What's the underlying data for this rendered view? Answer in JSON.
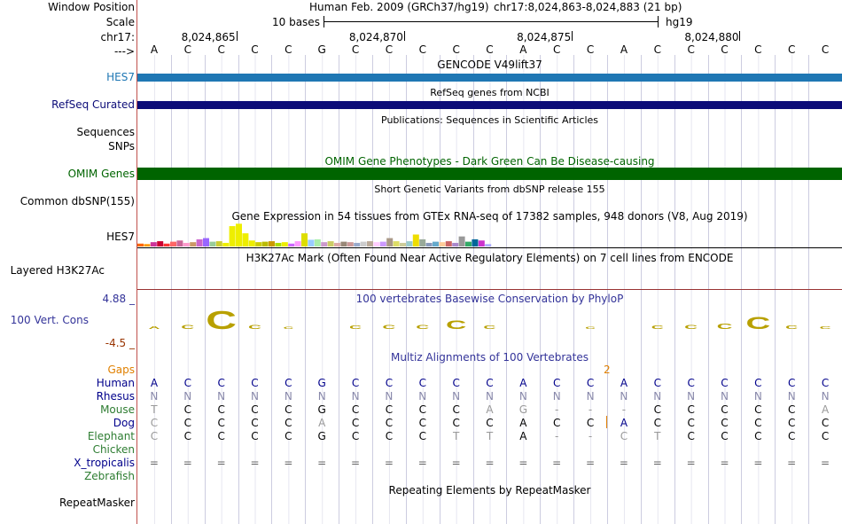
{
  "side_labels": {
    "window_position": "Window Position",
    "scale": "Scale",
    "chrom": "chr17:",
    "strand": "--->",
    "hes7": "HES7",
    "refseq": "RefSeq Curated",
    "sequences": "Sequences",
    "snps": "SNPs",
    "omim": "OMIM Genes",
    "common_dbsnp": "Common dbSNP(155)",
    "gtex_hes7": "HES7",
    "layered": "Layered H3K27Ac",
    "cons_max": "4.88 _",
    "cons": "100 Vert. Cons",
    "cons_min": "-4.5 _",
    "gaps": "Gaps",
    "human": "Human",
    "rhesus": "Rhesus",
    "mouse": "Mouse",
    "dog": "Dog",
    "elephant": "Elephant",
    "chicken": "Chicken",
    "xtrop": "X_tropicalis",
    "zebrafish": "Zebrafish",
    "repeatmasker": "RepeatMasker"
  },
  "header": {
    "assembly_title": "Human Feb. 2009 (GRCh37/hg19)",
    "position": "chr17:8,024,863-8,024,883 (21 bp)",
    "scale_label": "10 bases",
    "db": "hg19",
    "ruler_ticks": [
      "8,024,865",
      "8,024,870",
      "8,024,875",
      "8,024,880"
    ]
  },
  "sequence": [
    "A",
    "C",
    "C",
    "C",
    "C",
    "G",
    "C",
    "C",
    "C",
    "C",
    "C",
    "A",
    "C",
    "C",
    "A",
    "C",
    "C",
    "C",
    "C",
    "C",
    "C"
  ],
  "track_titles": {
    "gencode": "GENCODE V49lift37",
    "refseq": "RefSeq genes from NCBI",
    "publications": "Publications: Sequences in Scientific Articles",
    "omim": "OMIM Gene Phenotypes - Dark Green Can Be Disease-causing",
    "dbsnp": "Short Genetic Variants from dbSNP release 155",
    "gtex": "Gene Expression in 54 tissues from GTEx RNA-seq of 17382 samples, 948 donors (V8, Aug 2019)",
    "h3k27ac": "H3K27Ac Mark (Often Found Near Active Regulatory Elements) on 7 cell lines from ENCODE",
    "phylop": "100 vertebrates Basewise Conservation by PhyloP",
    "multiz": "Multiz Alignments of 100 Vertebrates",
    "repeatmasker": "Repeating Elements by RepeatMasker"
  },
  "gaps_marker": "2",
  "alignments": {
    "human": [
      "A",
      "C",
      "C",
      "C",
      "C",
      "G",
      "C",
      "C",
      "C",
      "C",
      "C",
      "A",
      "C",
      "C",
      "A",
      "C",
      "C",
      "C",
      "C",
      "C",
      "C"
    ],
    "rhesus": [
      "N",
      "N",
      "N",
      "N",
      "N",
      "N",
      "N",
      "N",
      "N",
      "N",
      "N",
      "N",
      "N",
      "N",
      "N",
      "N",
      "N",
      "N",
      "N",
      "N",
      "N"
    ],
    "mouse": [
      "T",
      "C",
      "C",
      "C",
      "C",
      "G",
      "C",
      "C",
      "C",
      "C",
      "A",
      "G",
      "-",
      "-",
      "-",
      "C",
      "C",
      "C",
      "C",
      "C",
      "A"
    ],
    "dog": [
      "C",
      "C",
      "C",
      "C",
      "C",
      "A",
      "C",
      "C",
      "C",
      "C",
      "C",
      "A",
      "C",
      "C",
      "A",
      "C",
      "C",
      "C",
      "C",
      "C",
      "C"
    ],
    "elephant": [
      "C",
      "C",
      "C",
      "C",
      "C",
      "G",
      "C",
      "C",
      "C",
      "T",
      "T",
      "A",
      "-",
      "-",
      "C",
      "T",
      "C",
      "C",
      "C",
      "C",
      "C"
    ],
    "xtrop": [
      "=",
      "=",
      "=",
      "=",
      "=",
      "=",
      "=",
      "=",
      "=",
      "=",
      "=",
      "=",
      "=",
      "=",
      "=",
      "=",
      "=",
      "=",
      "=",
      "=",
      "="
    ]
  },
  "gtex_values": [
    0.12,
    0.1,
    0.18,
    0.22,
    0.12,
    0.2,
    0.25,
    0.15,
    0.18,
    0.3,
    0.35,
    0.2,
    0.22,
    0.15,
    0.85,
    0.95,
    0.55,
    0.25,
    0.18,
    0.2,
    0.22,
    0.15,
    0.18,
    0.12,
    0.22,
    0.55,
    0.28,
    0.3,
    0.18,
    0.22,
    0.15,
    0.2,
    0.18,
    0.15,
    0.2,
    0.22,
    0.18,
    0.2,
    0.35,
    0.22,
    0.15,
    0.22,
    0.5,
    0.3,
    0.15,
    0.2,
    0.18,
    0.22,
    0.15,
    0.42,
    0.2,
    0.3,
    0.25,
    0.1
  ],
  "gtex_colors": [
    "#FF6600",
    "#FF9900",
    "#CC3399",
    "#CC0033",
    "#FF3333",
    "#FF6666",
    "#CC6699",
    "#FF99CC",
    "#CC9966",
    "#CC66CC",
    "#9966FF",
    "#99CC99",
    "#CCCC33",
    "#EEEE00",
    "#EEEE00",
    "#EEEE00",
    "#EEEE00",
    "#EEEE00",
    "#CCCC00",
    "#BBBB00",
    "#CC9900",
    "#AADD00",
    "#EEEE00",
    "#CC66FF",
    "#FF99FF",
    "#DDDD00",
    "#99CCFF",
    "#AAEEAA",
    "#CC99CC",
    "#CCCC66",
    "#DDAAAA",
    "#998877",
    "#CC9999",
    "#99AACC",
    "#CCCCCC",
    "#BBAA99",
    "#FFCCFF",
    "#CC99FF",
    "#AA9988",
    "#DDDD66",
    "#CCCC99",
    "#99CCCC",
    "#EEDD00",
    "#99AA99",
    "#8899BB",
    "#66AACC",
    "#FFCC99",
    "#CC6666",
    "#AA88CC",
    "#999999",
    "#33AA66",
    "#006699",
    "#CC33CC",
    "#AAAAFF"
  ],
  "phylop_values": [
    0.08,
    0.12,
    0.55,
    0.12,
    0.05,
    0.0,
    0.1,
    0.12,
    0.12,
    0.3,
    0.1,
    0.0,
    0.0,
    0.05,
    0.0,
    0.1,
    0.12,
    0.18,
    0.4,
    0.1,
    0.08
  ],
  "colors": {
    "hes7_bar": "#1F77B4",
    "refseq_bar": "#0C0C78",
    "omim_bar": "#006400",
    "omim_text": "#006400",
    "phylop_text": "#333399",
    "cons_color": "#B8A000",
    "gaps_color": "#E08000",
    "multiz_label": "#2E7D32",
    "species_label": "#00008B",
    "grid": "#cccce0"
  }
}
